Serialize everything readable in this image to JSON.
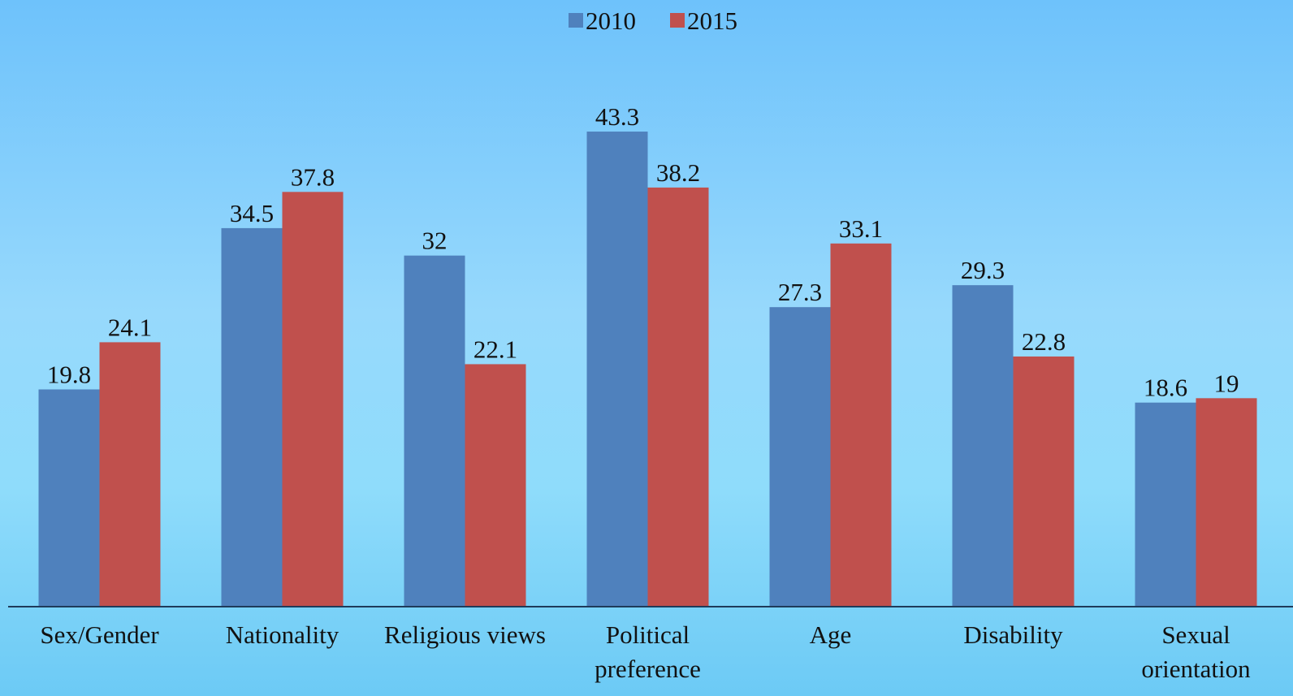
{
  "chart_data": {
    "type": "bar",
    "categories": [
      "Sex/Gender",
      "Nationality",
      "Religious views",
      "Political preference",
      "Age",
      "Disability",
      "Sexual orientation"
    ],
    "series": [
      {
        "name": "2010",
        "color": "#4f81bd",
        "values": [
          19.8,
          34.5,
          32,
          43.3,
          27.3,
          29.3,
          18.6
        ]
      },
      {
        "name": "2015",
        "color": "#c0504d",
        "values": [
          24.1,
          37.8,
          22.1,
          38.2,
          33.1,
          22.8,
          19
        ]
      }
    ],
    "ylim": [
      0,
      50
    ],
    "legend": "top",
    "grid": false
  }
}
